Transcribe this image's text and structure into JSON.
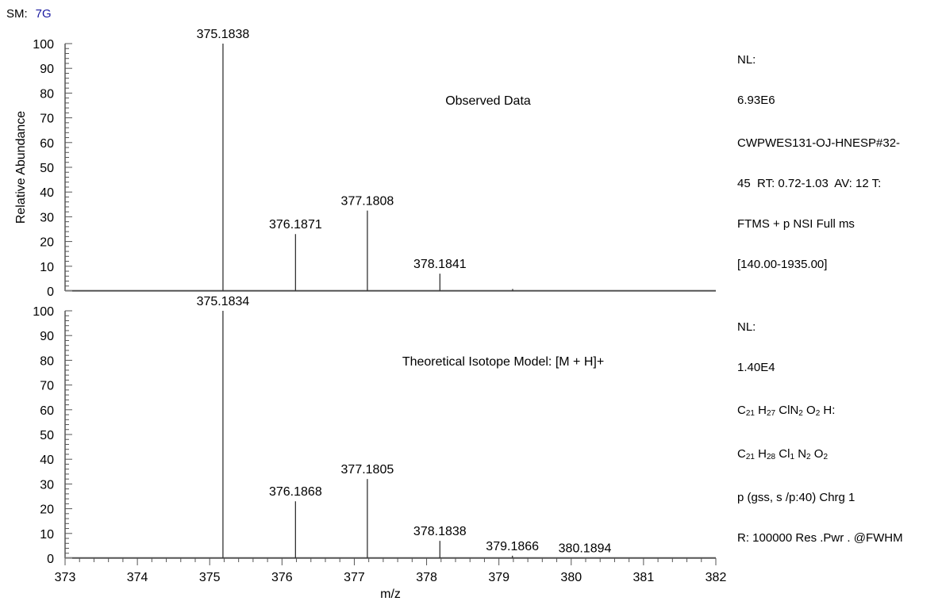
{
  "header": {
    "sm_label": "SM:",
    "sm_value": "7G"
  },
  "chart_data": [
    {
      "type": "bar",
      "annotation": "Observed Data",
      "ylabel": "Relative Abundance",
      "xlabel": "",
      "xlim": [
        373,
        382
      ],
      "ylim": [
        0,
        100
      ],
      "peaks": [
        {
          "x": 375.1838,
          "y": 100,
          "label": "375.1838"
        },
        {
          "x": 376.1871,
          "y": 23,
          "label": "376.1871"
        },
        {
          "x": 377.1808,
          "y": 32.5,
          "label": "377.1808"
        },
        {
          "x": 378.1841,
          "y": 7,
          "label": "378.1841"
        },
        {
          "x": 379.19,
          "y": 0.8,
          "label": ""
        }
      ],
      "info": {
        "nl_label": "NL:",
        "nl_value": "6.93E6",
        "lines": [
          "CWPWES131-OJ-HNESP#32-",
          "45  RT: 0.72-1.03  AV: 12 T:",
          "FTMS + p NSI Full ms",
          "[140.00-1935.00]"
        ]
      }
    },
    {
      "type": "bar",
      "annotation": "Theoretical Isotope Model: [M + H]+",
      "ylabel": "",
      "xlabel": "m/z",
      "xlim": [
        373,
        382
      ],
      "ylim": [
        0,
        100
      ],
      "xticks": [
        "373",
        "374",
        "375",
        "376",
        "377",
        "378",
        "379",
        "380",
        "381",
        "382"
      ],
      "peaks": [
        {
          "x": 375.1834,
          "y": 100,
          "label": "375.1834"
        },
        {
          "x": 376.1868,
          "y": 23,
          "label": "376.1868"
        },
        {
          "x": 377.1805,
          "y": 32,
          "label": "377.1805"
        },
        {
          "x": 378.1838,
          "y": 7,
          "label": "378.1838"
        },
        {
          "x": 379.1866,
          "y": 1.0,
          "label": "379.1866"
        },
        {
          "x": 380.1894,
          "y": 0.2,
          "label": "380.1894"
        }
      ],
      "info": {
        "nl_label": "NL:",
        "nl_value": "1.40E4",
        "formula1": {
          "c": "C",
          "c_n": "21",
          "h": "H",
          "h_n": "27",
          "cl": "ClN",
          "n_n": "2",
          "o": "O",
          "o_n": "2",
          "tail": "H:"
        },
        "formula2": {
          "c": "C",
          "c_n": "21",
          "h": "H",
          "h_n": "28",
          "cl": "Cl",
          "cl_n": "1",
          "n": "N",
          "n_n": "2",
          "o": "O",
          "o_n": "2"
        },
        "lines": [
          "p (gss, s /p:40) Chrg 1",
          "R: 100000 Res .Pwr . @FWHM"
        ]
      }
    }
  ]
}
